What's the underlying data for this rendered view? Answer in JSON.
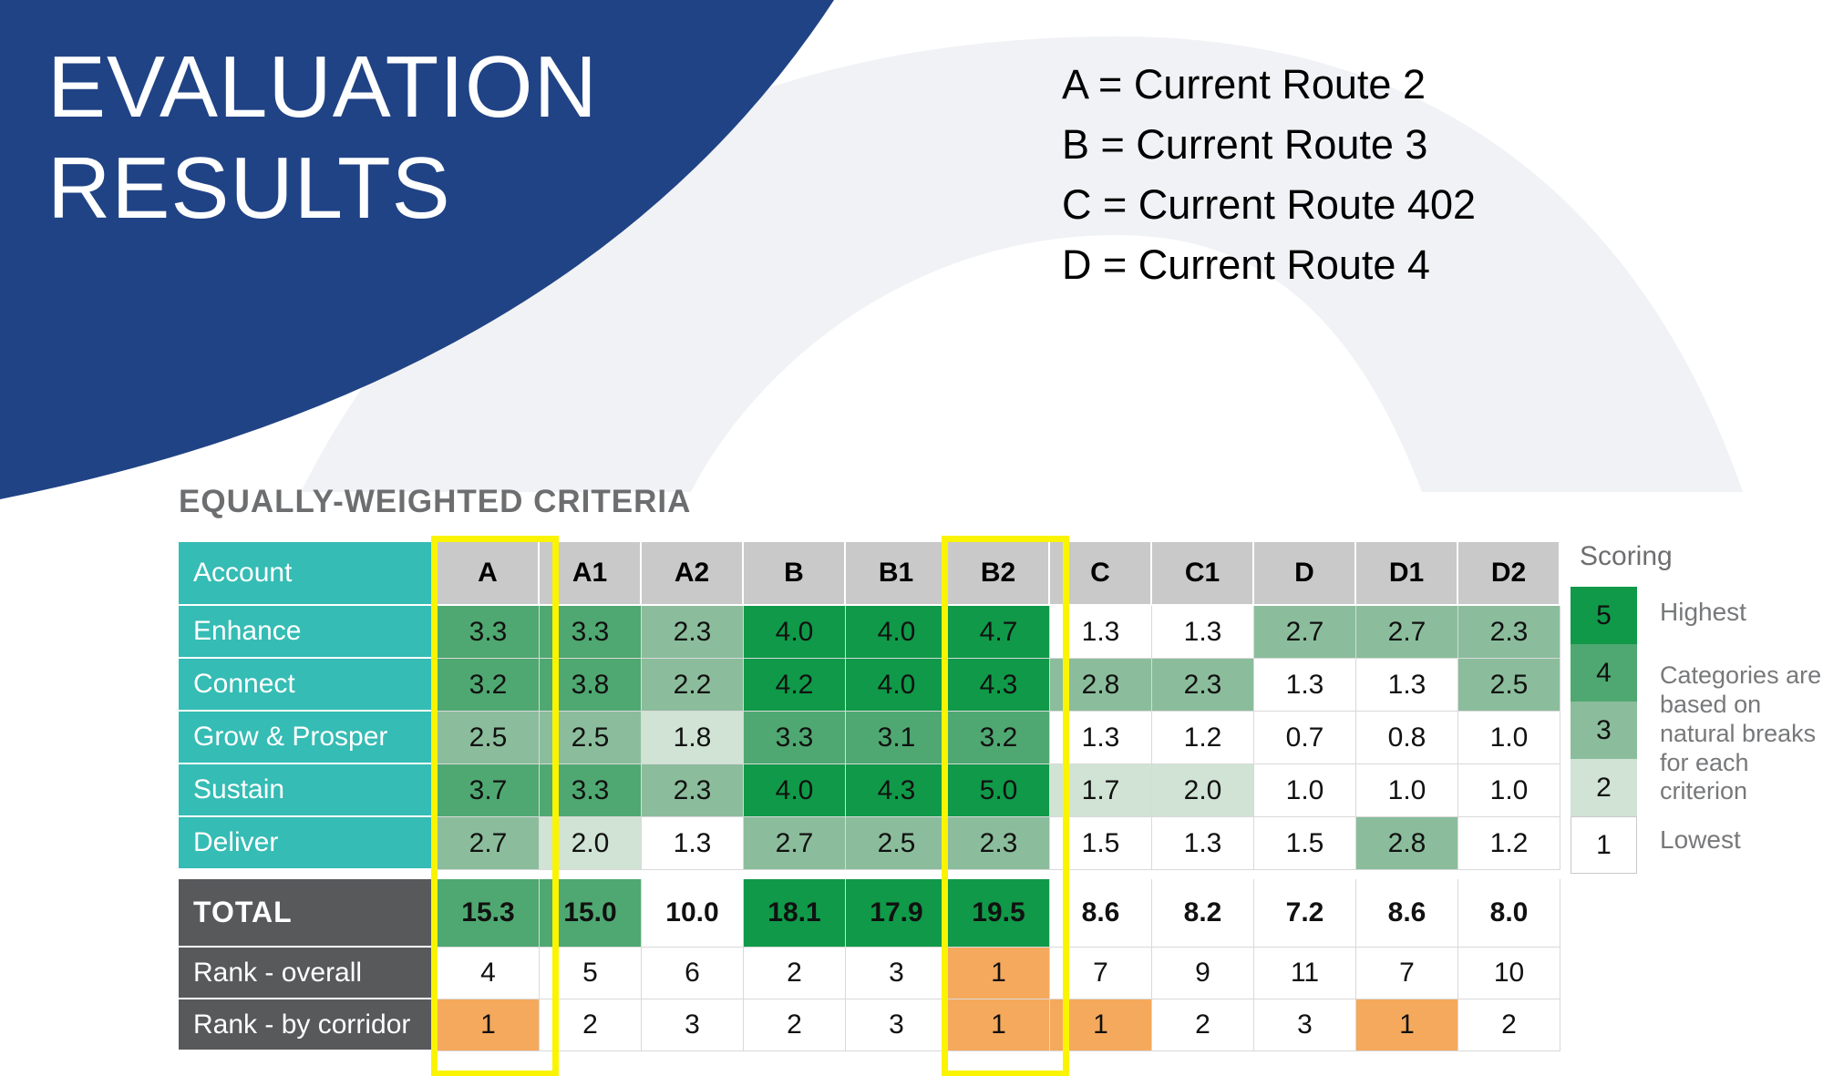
{
  "slide": {
    "title_lines": [
      "EVALUATION",
      "RESULTS"
    ],
    "route_legend": [
      "A = Current Route 2",
      "B = Current Route 3",
      "C = Current Route 402",
      "D = Current Route 4"
    ],
    "section_heading": "EQUALLY-WEIGHTED CRITERIA"
  },
  "colors": {
    "blue": "#204385",
    "arch_gray": "#f1f2f6",
    "teal": "#35bcb4",
    "dark_gray": "#58595b",
    "header_gray": "#c9c9c9",
    "heading_gray": "#6d6e70",
    "level5": "#109948",
    "level4": "#4fa871",
    "level3": "#8bbd9c",
    "level2": "#d0e3d4",
    "level1": "#ffffff",
    "orange": "#f5a95d",
    "highlight_yellow": "#faf400"
  },
  "table": {
    "columns": [
      "Account",
      "A",
      "A1",
      "A2",
      "B",
      "B1",
      "B2",
      "C",
      "C1",
      "D",
      "D1",
      "D2"
    ],
    "highlighted_columns": [
      "A",
      "B2"
    ],
    "criteria_rows": [
      {
        "label": "Enhance",
        "values": [
          "3.3",
          "3.3",
          "2.3",
          "4.0",
          "4.0",
          "4.7",
          "1.3",
          "1.3",
          "2.7",
          "2.7",
          "2.3"
        ],
        "levels": [
          4,
          4,
          3,
          5,
          5,
          5,
          1,
          1,
          3,
          3,
          3
        ]
      },
      {
        "label": "Connect",
        "values": [
          "3.2",
          "3.8",
          "2.2",
          "4.2",
          "4.0",
          "4.3",
          "2.8",
          "2.3",
          "1.3",
          "1.3",
          "2.5"
        ],
        "levels": [
          4,
          4,
          3,
          5,
          5,
          5,
          3,
          3,
          1,
          1,
          3
        ]
      },
      {
        "label": "Grow & Prosper",
        "values": [
          "2.5",
          "2.5",
          "1.8",
          "3.3",
          "3.1",
          "3.2",
          "1.3",
          "1.2",
          "0.7",
          "0.8",
          "1.0"
        ],
        "levels": [
          3,
          3,
          2,
          4,
          4,
          4,
          1,
          1,
          1,
          1,
          1
        ]
      },
      {
        "label": "Sustain",
        "values": [
          "3.7",
          "3.3",
          "2.3",
          "4.0",
          "4.3",
          "5.0",
          "1.7",
          "2.0",
          "1.0",
          "1.0",
          "1.0"
        ],
        "levels": [
          4,
          4,
          3,
          5,
          5,
          5,
          2,
          2,
          1,
          1,
          1
        ]
      },
      {
        "label": "Deliver",
        "values": [
          "2.7",
          "2.0",
          "1.3",
          "2.7",
          "2.5",
          "2.3",
          "1.5",
          "1.3",
          "1.5",
          "2.8",
          "1.2"
        ],
        "levels": [
          3,
          2,
          1,
          3,
          3,
          3,
          1,
          1,
          1,
          3,
          1
        ]
      }
    ],
    "total_row": {
      "label": "TOTAL",
      "values": [
        "15.3",
        "15.0",
        "10.0",
        "18.1",
        "17.9",
        "19.5",
        "8.6",
        "8.2",
        "7.2",
        "8.6",
        "8.0"
      ],
      "levels": [
        4,
        4,
        1,
        5,
        5,
        5,
        1,
        1,
        1,
        1,
        1
      ]
    },
    "rank_rows": [
      {
        "label": "Rank - overall",
        "values": [
          "4",
          "5",
          "6",
          "2",
          "3",
          "1",
          "7",
          "9",
          "11",
          "7",
          "10"
        ],
        "orange": [
          false,
          false,
          false,
          false,
          false,
          true,
          false,
          false,
          false,
          false,
          false
        ]
      },
      {
        "label": "Rank - by corridor",
        "values": [
          "1",
          "2",
          "3",
          "2",
          "3",
          "1",
          "1",
          "2",
          "3",
          "1",
          "2"
        ],
        "orange": [
          true,
          false,
          false,
          false,
          false,
          true,
          true,
          false,
          false,
          true,
          false
        ]
      }
    ]
  },
  "scoring_legend": {
    "title": "Scoring",
    "items": [
      {
        "score": "5",
        "level": 5,
        "label": "Highest"
      },
      {
        "score": "4",
        "level": 4,
        "label": ""
      },
      {
        "score": "3",
        "level": 3,
        "label": ""
      },
      {
        "score": "2",
        "level": 2,
        "label": ""
      },
      {
        "score": "1",
        "level": 1,
        "label": "Lowest"
      }
    ],
    "note": "Categories are based on natural breaks for each criterion"
  }
}
